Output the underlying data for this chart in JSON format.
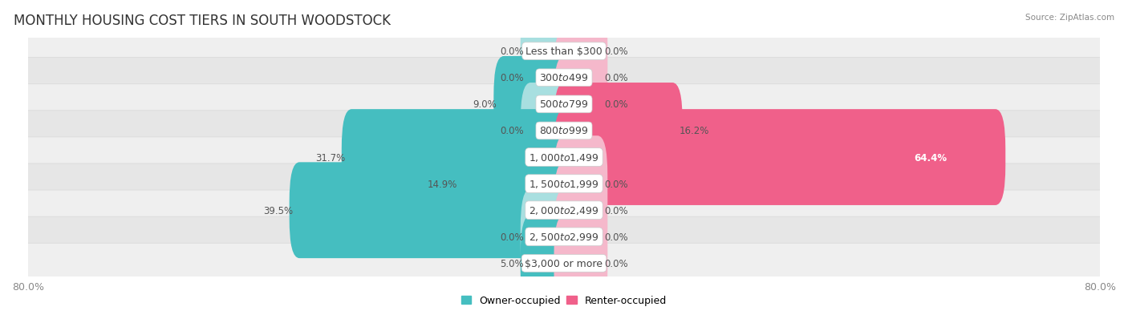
{
  "title": "MONTHLY HOUSING COST TIERS IN SOUTH WOODSTOCK",
  "source": "Source: ZipAtlas.com",
  "categories": [
    "Less than $300",
    "$300 to $499",
    "$500 to $799",
    "$800 to $999",
    "$1,000 to $1,499",
    "$1,500 to $1,999",
    "$2,000 to $2,499",
    "$2,500 to $2,999",
    "$3,000 or more"
  ],
  "owner_values": [
    0.0,
    0.0,
    9.0,
    0.0,
    31.7,
    14.9,
    39.5,
    0.0,
    5.0
  ],
  "renter_values": [
    0.0,
    0.0,
    0.0,
    16.2,
    64.4,
    0.0,
    0.0,
    0.0,
    0.0
  ],
  "owner_color": "#45bec0",
  "owner_zero_color": "#a8dfe0",
  "renter_color": "#f0608a",
  "renter_zero_color": "#f5b8cb",
  "row_bg_colors": [
    "#efefef",
    "#e6e6e6"
  ],
  "row_border_color": "#d8d8d8",
  "xlim": 80.0,
  "stub_size": 5.0,
  "legend_owner": "Owner-occupied",
  "legend_renter": "Renter-occupied",
  "title_fontsize": 12,
  "label_fontsize": 9,
  "cat_fontsize": 9,
  "value_fontsize": 8.5,
  "background_color": "#ffffff"
}
